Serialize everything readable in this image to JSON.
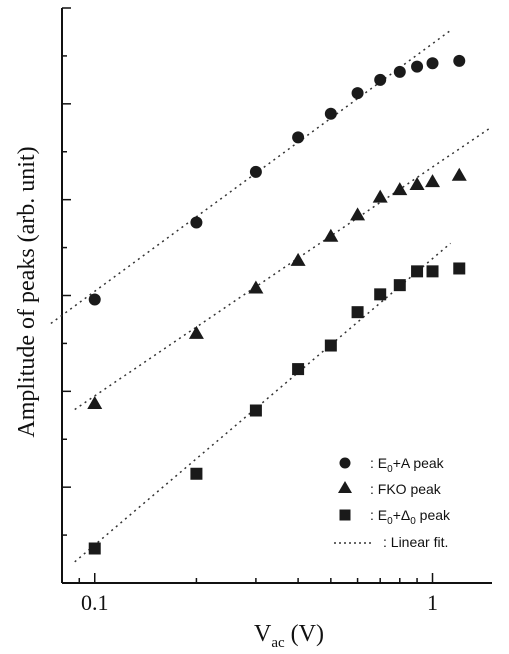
{
  "chart_data": {
    "type": "scatter",
    "xscale": "log",
    "yscale": "log",
    "xlim": [
      0.08,
      1.5
    ],
    "ylim": [
      0,
      1
    ],
    "xlabel": "V",
    "xlabel_sub": "ac",
    "xlabel_unit": " (V)",
    "ylabel": "Amplitude of peaks (arb. unit)",
    "xticks": [
      {
        "value": 0.1,
        "label": "0.1"
      },
      {
        "value": 1,
        "label": "1"
      }
    ],
    "grid": false,
    "legend_position": "bottom-right",
    "series": [
      {
        "name": ": E0+A peak",
        "legend_main": ": E",
        "legend_sub": "0",
        "legend_rest": "+A peak",
        "marker": "circle",
        "x": [
          0.1,
          0.2,
          0.3,
          0.4,
          0.5,
          0.6,
          0.7,
          0.8,
          0.9,
          1.0,
          1.2
        ],
        "y": [
          0.493,
          0.627,
          0.715,
          0.775,
          0.816,
          0.852,
          0.875,
          0.889,
          0.898,
          0.904,
          0.908
        ]
      },
      {
        "name": ": FKO peak",
        "legend_main": ": FKO peak",
        "legend_sub": "",
        "legend_rest": "",
        "marker": "triangle",
        "x": [
          0.1,
          0.2,
          0.3,
          0.4,
          0.5,
          0.6,
          0.7,
          0.8,
          0.9,
          1.0,
          1.2
        ],
        "y": [
          0.313,
          0.435,
          0.514,
          0.562,
          0.604,
          0.641,
          0.672,
          0.685,
          0.694,
          0.699,
          0.71
        ]
      },
      {
        "name": ": E0+Δ0 peak",
        "legend_main": ": E",
        "legend_sub": "0",
        "legend_rest": "+Δ",
        "legend_sub2": "0",
        "legend_rest2": " peak",
        "marker": "square",
        "x": [
          0.1,
          0.2,
          0.3,
          0.4,
          0.5,
          0.6,
          0.7,
          0.8,
          0.9,
          1.0,
          1.2
        ],
        "y": [
          0.06,
          0.19,
          0.3,
          0.372,
          0.413,
          0.471,
          0.502,
          0.518,
          0.542,
          0.542,
          0.547
        ]
      }
    ],
    "fit_label": ": Linear fit."
  },
  "colors": {
    "marker": "#1a1a1a",
    "axis": "#111111",
    "fit": "#333333"
  }
}
